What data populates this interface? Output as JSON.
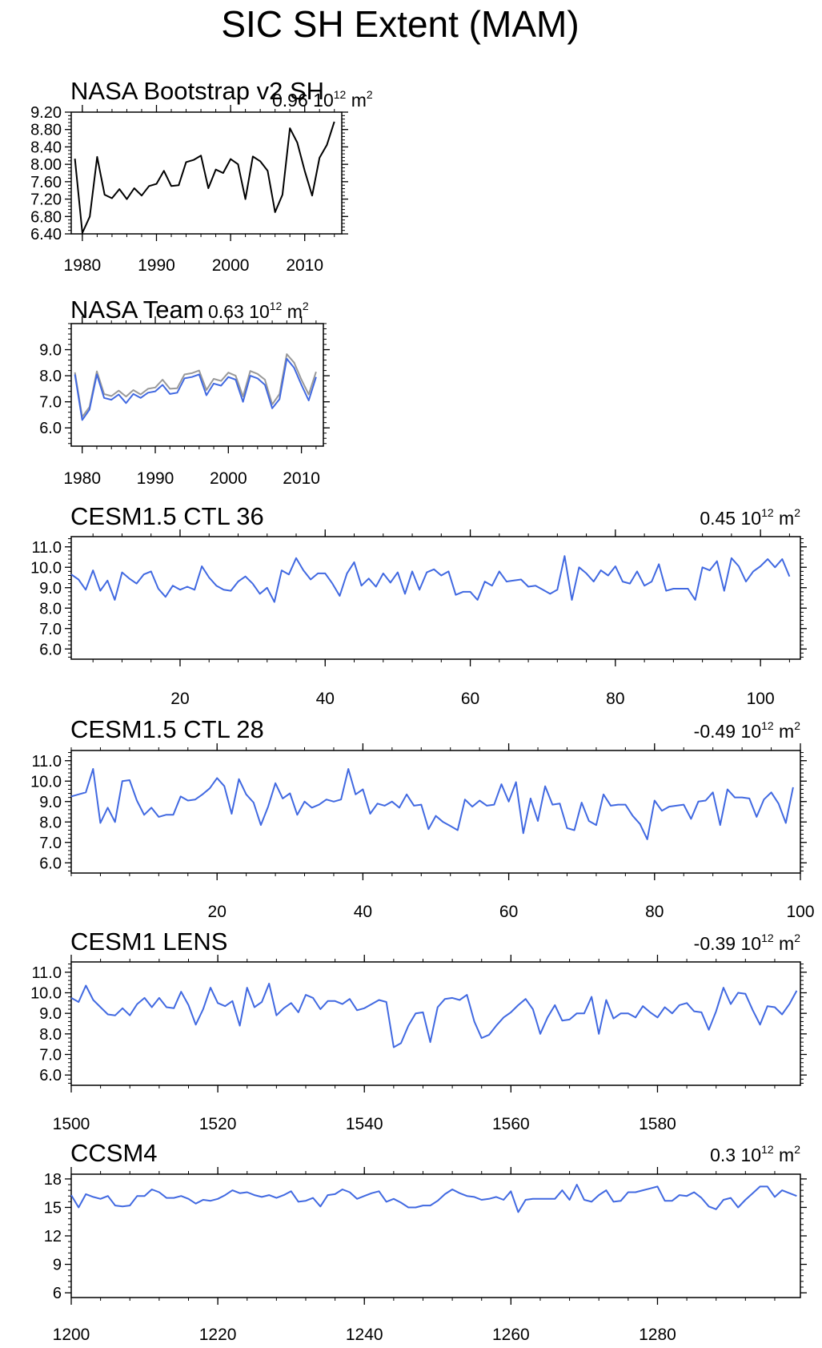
{
  "figure": {
    "title": "SIC SH Extent (MAM)"
  },
  "colors": {
    "obs_line": "#000000",
    "bootstrap_line": "#999999",
    "model_line": "#4169e1",
    "axis": "#000000"
  },
  "chart_data": [
    {
      "type": "line",
      "title": "NASA Bootstrap v2 SH",
      "annotation": {
        "value": "0.96",
        "unit": "10",
        "exponent": "12",
        "unit_tail": "m",
        "unit_exp": "2"
      },
      "xlim": [
        1978.5,
        2015
      ],
      "ylim": [
        6.4,
        9.2
      ],
      "yticks": [
        "6.40",
        "6.80",
        "7.20",
        "7.60",
        "8.00",
        "8.40",
        "8.80",
        "9.20"
      ],
      "ytick_values": [
        6.4,
        6.8,
        7.2,
        7.6,
        8.0,
        8.4,
        8.8,
        9.2
      ],
      "xticks": [
        "1980",
        "1990",
        "2000",
        "2010"
      ],
      "xtick_values": [
        1980,
        1990,
        2000,
        2010
      ],
      "x_start": 1979,
      "series": [
        {
          "color": "#000000",
          "values": [
            8.13,
            6.42,
            6.8,
            8.17,
            7.3,
            7.22,
            7.43,
            7.2,
            7.45,
            7.28,
            7.5,
            7.55,
            7.85,
            7.5,
            7.52,
            8.05,
            8.1,
            8.2,
            7.45,
            7.88,
            7.8,
            8.12,
            8.0,
            7.2,
            8.18,
            8.07,
            7.85,
            6.9,
            7.3,
            8.83,
            8.5,
            7.85,
            7.28,
            8.15,
            8.45,
            8.98
          ]
        }
      ]
    },
    {
      "type": "line",
      "title": "NASA Team",
      "annotation": {
        "value": "0.63",
        "unit": "10",
        "exponent": "12",
        "unit_tail": "m",
        "unit_exp": "2"
      },
      "xlim": [
        1978.5,
        2013
      ],
      "ylim": [
        5.3,
        10.0
      ],
      "yticks": [
        "6.0",
        "7.0",
        "8.0",
        "9.0"
      ],
      "ytick_values": [
        6.0,
        7.0,
        8.0,
        9.0
      ],
      "xticks": [
        "1980",
        "1990",
        "2000",
        "2010"
      ],
      "xtick_values": [
        1980,
        1990,
        2000,
        2010
      ],
      "x_start": 1979,
      "series": [
        {
          "color": "#999999",
          "values": [
            8.13,
            6.42,
            6.8,
            8.17,
            7.3,
            7.22,
            7.43,
            7.2,
            7.45,
            7.28,
            7.5,
            7.55,
            7.85,
            7.5,
            7.52,
            8.05,
            8.1,
            8.2,
            7.45,
            7.88,
            7.8,
            8.12,
            8.0,
            7.2,
            8.18,
            8.07,
            7.85,
            6.9,
            7.3,
            8.83,
            8.5,
            7.85,
            7.28,
            8.15
          ]
        },
        {
          "color": "#4169e1",
          "values": [
            8.05,
            6.3,
            6.7,
            8.05,
            7.15,
            7.08,
            7.28,
            6.95,
            7.3,
            7.15,
            7.35,
            7.4,
            7.65,
            7.3,
            7.35,
            7.9,
            7.95,
            8.05,
            7.25,
            7.7,
            7.62,
            7.95,
            7.85,
            7.0,
            8.0,
            7.9,
            7.65,
            6.75,
            7.1,
            8.65,
            8.3,
            7.65,
            7.05,
            7.95
          ]
        }
      ]
    },
    {
      "type": "line",
      "title": "CESM1.5 CTL 36",
      "annotation": {
        "value": "0.45",
        "unit": "10",
        "exponent": "12",
        "unit_tail": "m",
        "unit_exp": "2"
      },
      "xlim": [
        5,
        105.5
      ],
      "ylim": [
        5.5,
        11.5
      ],
      "yticks": [
        "6.0",
        "7.0",
        "8.0",
        "9.0",
        "10.0",
        "11.0"
      ],
      "ytick_values": [
        6.0,
        7.0,
        8.0,
        9.0,
        10.0,
        11.0
      ],
      "xticks": [
        "20",
        "40",
        "60",
        "80",
        "100"
      ],
      "xtick_values": [
        20,
        40,
        60,
        80,
        100
      ],
      "x_start": 5,
      "series": [
        {
          "color": "#4169e1",
          "values": [
            9.65,
            9.4,
            8.9,
            9.85,
            8.85,
            9.35,
            8.4,
            9.75,
            9.45,
            9.2,
            9.65,
            9.8,
            8.95,
            8.55,
            9.1,
            8.9,
            9.05,
            8.9,
            10.05,
            9.5,
            9.1,
            8.9,
            8.85,
            9.3,
            9.55,
            9.2,
            8.7,
            9.0,
            8.3,
            9.85,
            9.65,
            10.45,
            9.85,
            9.4,
            9.7,
            9.7,
            9.2,
            8.6,
            9.7,
            10.25,
            9.1,
            9.45,
            9.05,
            9.7,
            9.25,
            9.75,
            8.7,
            9.8,
            8.9,
            9.75,
            9.9,
            9.6,
            9.8,
            8.65,
            8.8,
            8.8,
            8.4,
            9.3,
            9.1,
            9.8,
            9.3,
            9.35,
            9.4,
            9.05,
            9.1,
            8.9,
            8.7,
            8.9,
            10.55,
            8.4,
            10.0,
            9.7,
            9.3,
            9.85,
            9.6,
            10.05,
            9.3,
            9.2,
            9.8,
            9.1,
            9.3,
            10.15,
            8.85,
            8.95,
            8.95,
            8.95,
            8.4,
            10.0,
            9.85,
            10.3,
            8.85,
            10.45,
            10.05,
            9.3,
            9.8,
            10.05,
            10.4,
            10.0,
            10.4,
            9.55
          ]
        }
      ]
    },
    {
      "type": "line",
      "title": "CESM1.5 CTL 28",
      "annotation": {
        "value": "-0.49",
        "unit": "10",
        "exponent": "12",
        "unit_tail": "m",
        "unit_exp": "2"
      },
      "xlim": [
        0,
        100
      ],
      "ylim": [
        5.5,
        11.5
      ],
      "yticks": [
        "6.0",
        "7.0",
        "8.0",
        "9.0",
        "10.0",
        "11.0"
      ],
      "ytick_values": [
        6.0,
        7.0,
        8.0,
        9.0,
        10.0,
        11.0
      ],
      "xticks": [
        "20",
        "40",
        "60",
        "80",
        "100"
      ],
      "xtick_values": [
        20,
        40,
        60,
        80,
        100
      ],
      "x_start": 0,
      "series": [
        {
          "color": "#4169e1",
          "values": [
            9.25,
            9.35,
            9.45,
            10.6,
            7.95,
            8.7,
            8.0,
            10.0,
            10.05,
            9.05,
            8.35,
            8.7,
            8.25,
            8.35,
            8.35,
            9.25,
            9.05,
            9.1,
            9.35,
            9.65,
            10.15,
            9.75,
            8.4,
            10.1,
            9.35,
            8.95,
            7.85,
            8.75,
            9.9,
            9.15,
            9.4,
            8.35,
            9.0,
            8.7,
            8.85,
            9.1,
            9.0,
            9.1,
            10.6,
            9.35,
            9.6,
            8.4,
            8.9,
            8.8,
            9.0,
            8.7,
            9.35,
            8.8,
            8.85,
            7.65,
            8.3,
            8.0,
            7.8,
            7.6,
            9.1,
            8.75,
            9.05,
            8.8,
            8.85,
            9.85,
            9.0,
            9.95,
            7.45,
            9.15,
            8.05,
            9.75,
            8.85,
            8.9,
            7.7,
            7.6,
            8.95,
            8.05,
            7.85,
            9.35,
            8.8,
            8.85,
            8.85,
            8.3,
            7.9,
            7.15,
            9.05,
            8.55,
            8.75,
            8.8,
            8.85,
            8.15,
            9.0,
            9.05,
            9.45,
            7.85,
            9.6,
            9.2,
            9.2,
            9.15,
            8.25,
            9.1,
            9.45,
            8.9,
            7.95,
            9.7
          ]
        }
      ]
    },
    {
      "type": "line",
      "title": "CESM1 LENS",
      "annotation": {
        "value": "-0.39",
        "unit": "10",
        "exponent": "12",
        "unit_tail": "m",
        "unit_exp": "2"
      },
      "xlim": [
        1500,
        1599.5
      ],
      "ylim": [
        5.5,
        11.5
      ],
      "yticks": [
        "6.0",
        "7.0",
        "8.0",
        "9.0",
        "10.0",
        "11.0"
      ],
      "ytick_values": [
        6.0,
        7.0,
        8.0,
        9.0,
        10.0,
        11.0
      ],
      "xticks": [
        "1500",
        "1520",
        "1540",
        "1560",
        "1580"
      ],
      "xtick_values": [
        1500,
        1520,
        1540,
        1560,
        1580
      ],
      "x_start": 1500,
      "series": [
        {
          "color": "#4169e1",
          "values": [
            9.75,
            9.55,
            10.35,
            9.65,
            9.3,
            8.95,
            8.9,
            9.25,
            8.9,
            9.45,
            9.75,
            9.3,
            9.75,
            9.3,
            9.25,
            10.05,
            9.4,
            8.45,
            9.2,
            10.25,
            9.5,
            9.35,
            9.6,
            8.4,
            10.25,
            9.3,
            9.55,
            10.45,
            8.9,
            9.25,
            9.5,
            9.05,
            9.9,
            9.75,
            9.2,
            9.6,
            9.6,
            9.45,
            9.7,
            9.15,
            9.25,
            9.45,
            9.65,
            9.55,
            7.35,
            7.55,
            8.4,
            9.0,
            9.05,
            7.6,
            9.3,
            9.7,
            9.75,
            9.65,
            9.9,
            8.6,
            7.8,
            7.95,
            8.4,
            8.8,
            9.05,
            9.4,
            9.7,
            9.2,
            8.0,
            8.8,
            9.4,
            8.65,
            8.7,
            9.0,
            9.0,
            9.8,
            8.0,
            9.65,
            8.75,
            9.0,
            9.0,
            8.8,
            9.35,
            9.05,
            8.8,
            9.3,
            9.0,
            9.4,
            9.5,
            9.1,
            9.05,
            8.2,
            9.1,
            10.25,
            9.45,
            10.0,
            9.95,
            9.15,
            8.45,
            9.35,
            9.3,
            8.95,
            9.45,
            10.1
          ]
        }
      ]
    },
    {
      "type": "line",
      "title": "CCSM4",
      "annotation": {
        "value": "0.3",
        "unit": "10",
        "exponent": "12",
        "unit_tail": "m",
        "unit_exp": "2"
      },
      "xlim": [
        1200,
        1299.5
      ],
      "ylim": [
        5.5,
        18.5
      ],
      "yticks": [
        "6",
        "9",
        "12",
        "15",
        "18"
      ],
      "ytick_values": [
        6,
        9,
        12,
        15,
        18
      ],
      "xticks": [
        "1200",
        "1220",
        "1240",
        "1260",
        "1280"
      ],
      "xtick_values": [
        1200,
        1220,
        1240,
        1260,
        1280
      ],
      "x_start": 1200,
      "series": [
        {
          "color": "#4169e1",
          "values": [
            16.3,
            15.0,
            16.4,
            16.1,
            15.9,
            16.2,
            15.2,
            15.1,
            15.2,
            16.2,
            16.2,
            16.9,
            16.6,
            16.0,
            16.0,
            16.2,
            15.9,
            15.4,
            15.8,
            15.7,
            15.9,
            16.3,
            16.8,
            16.5,
            16.6,
            16.3,
            16.1,
            16.3,
            16.0,
            16.3,
            16.7,
            15.6,
            15.7,
            16.0,
            15.1,
            16.3,
            16.4,
            16.9,
            16.6,
            15.9,
            16.2,
            16.5,
            16.7,
            15.6,
            15.9,
            15.5,
            15.0,
            15.0,
            15.2,
            15.2,
            15.7,
            16.4,
            16.9,
            16.5,
            16.2,
            16.1,
            15.8,
            15.9,
            16.1,
            15.8,
            16.7,
            14.5,
            15.8,
            15.9,
            15.9,
            15.9,
            15.9,
            16.8,
            15.8,
            17.4,
            15.8,
            15.6,
            16.3,
            16.8,
            15.6,
            15.7,
            16.6,
            16.6,
            16.8,
            17.0,
            17.2,
            15.7,
            15.7,
            16.3,
            16.2,
            16.6,
            16.0,
            15.1,
            14.8,
            15.8,
            16.0,
            15.0,
            15.8,
            16.5,
            17.2,
            17.2,
            16.1,
            16.8,
            16.5,
            16.2
          ]
        }
      ]
    }
  ]
}
